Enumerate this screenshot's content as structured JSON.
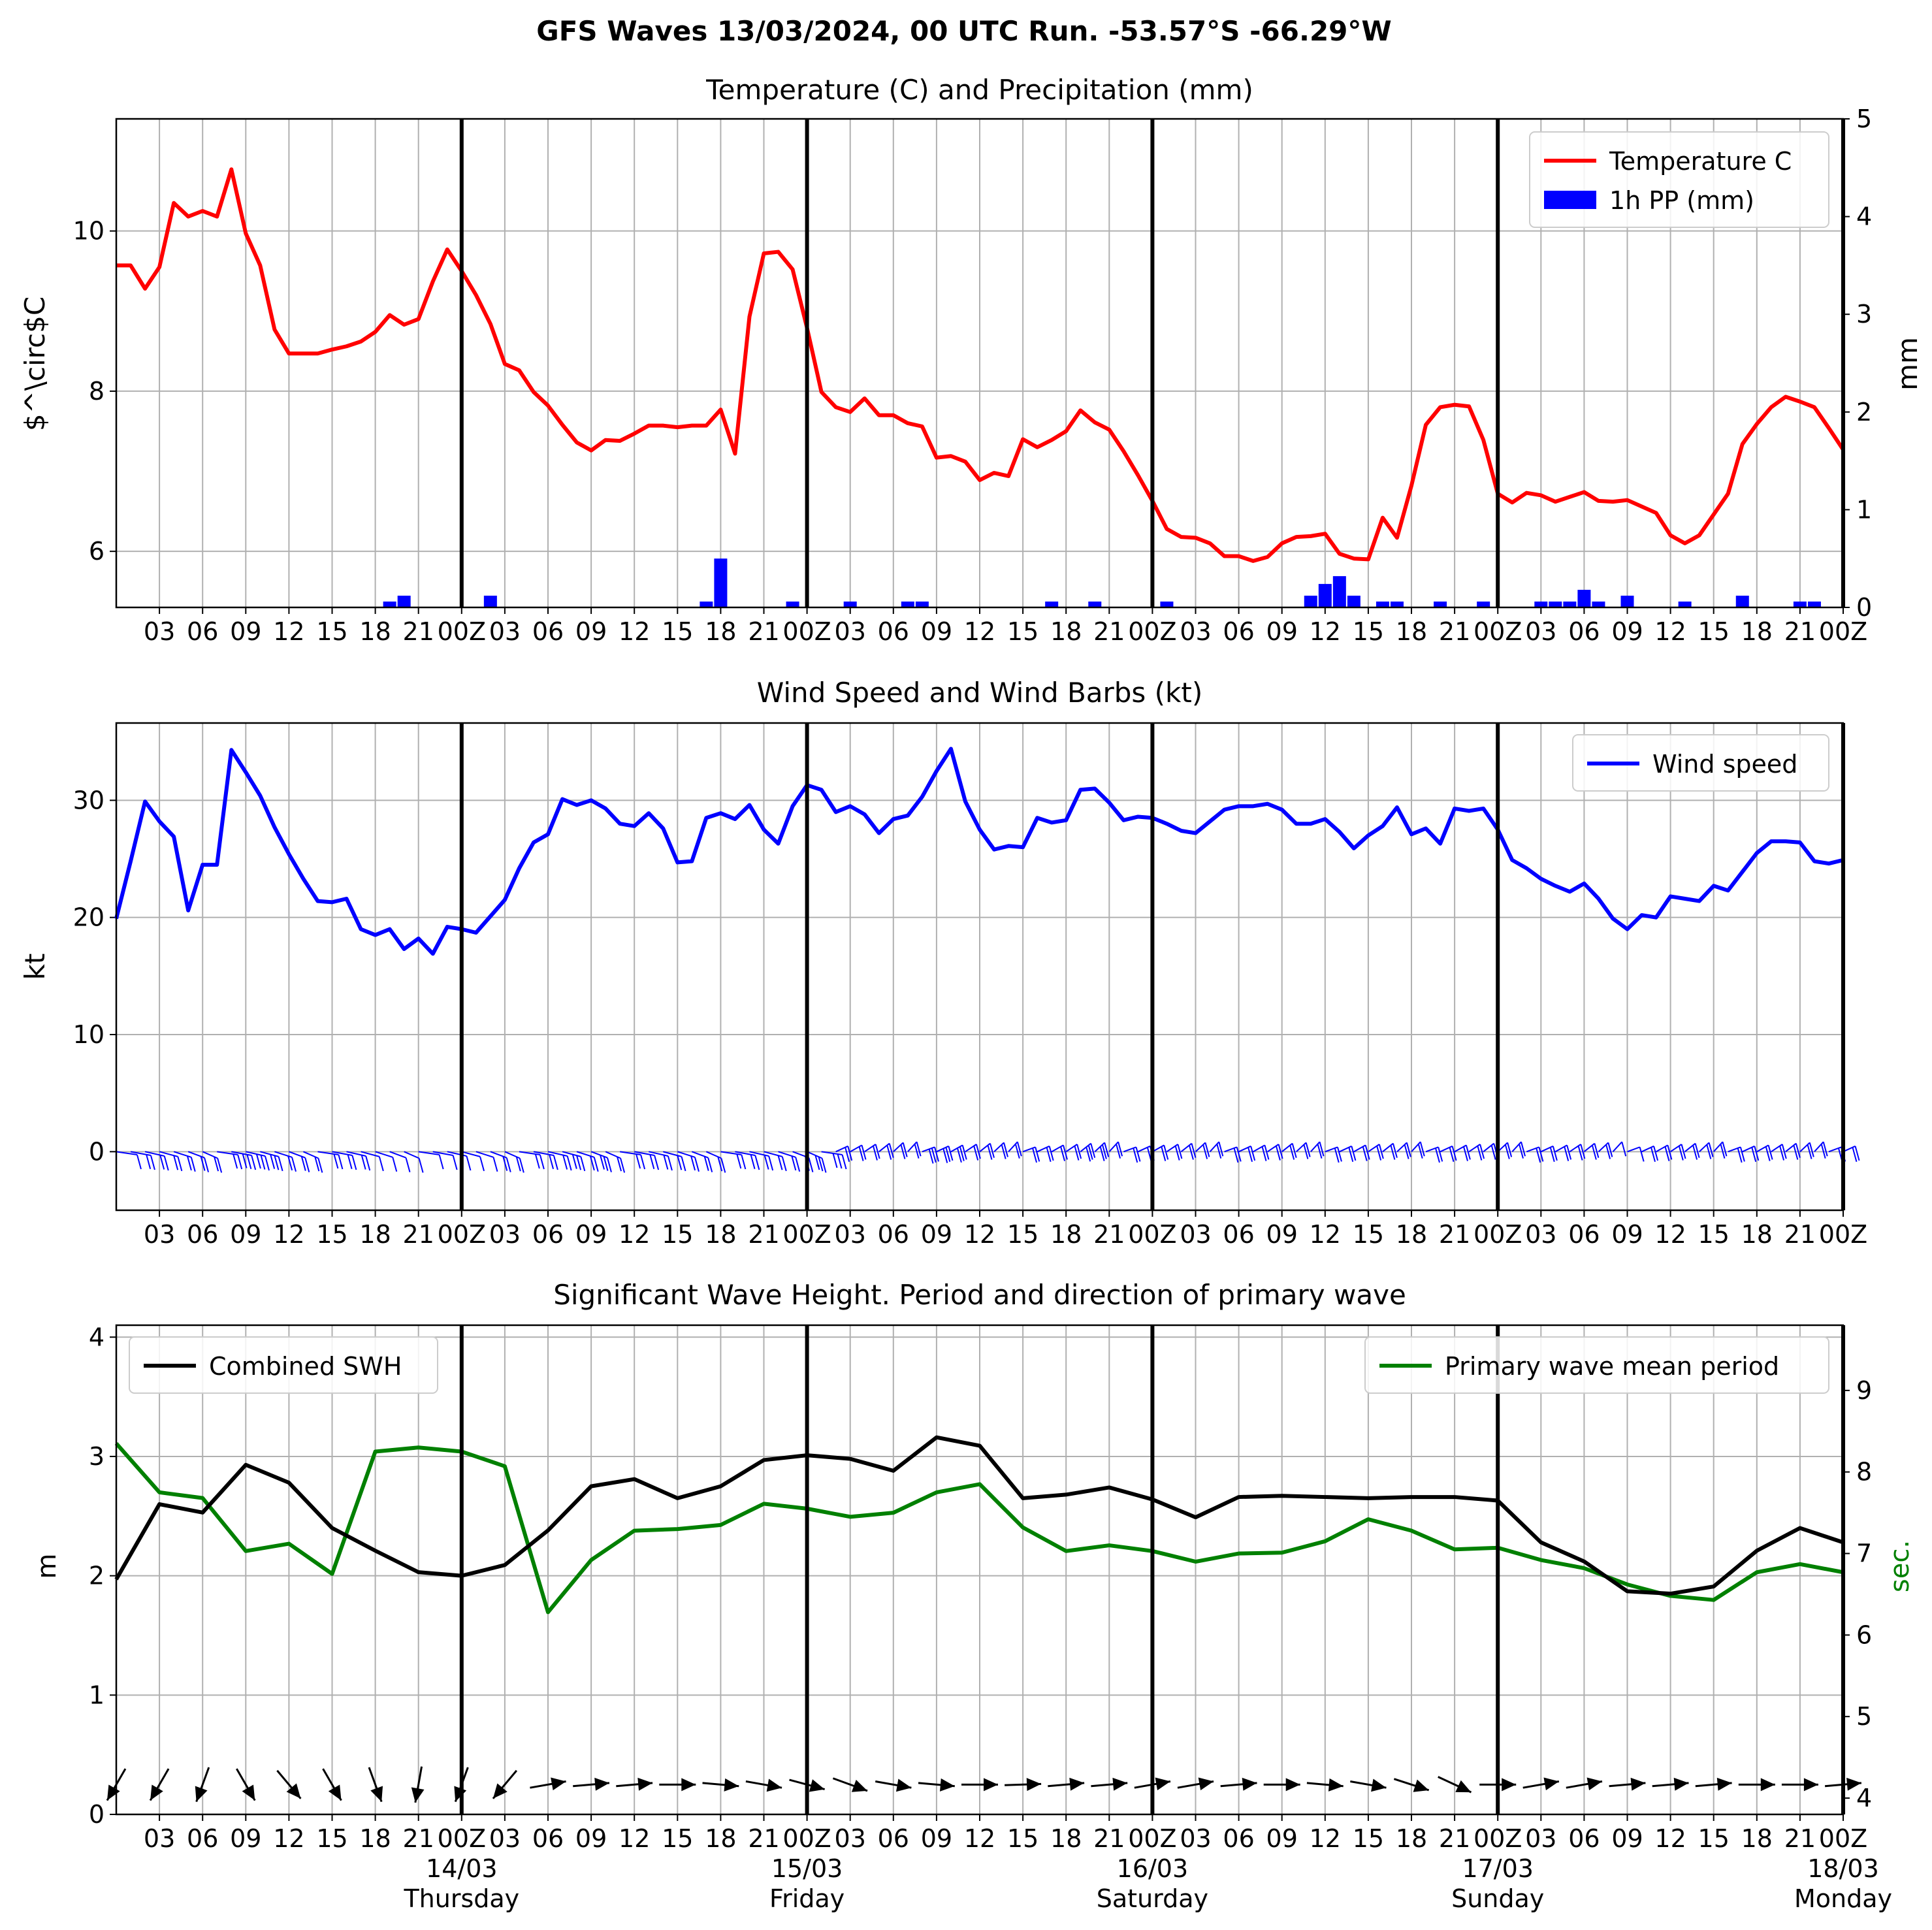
{
  "figure_title": "GFS Waves 13/03/2024, 00 UTC Run. -53.57°S -66.29°W",
  "colors": {
    "temperature": "#ff0000",
    "precip": "#0000ff",
    "wind": "#0000ff",
    "swh": "#000000",
    "period": "#008000",
    "grid": "#b0b0b0",
    "day_line": "#000000"
  },
  "x_tick_labels": [
    "03",
    "06",
    "09",
    "12",
    "15",
    "18",
    "21",
    "00Z",
    "03",
    "06",
    "09",
    "12",
    "15",
    "18",
    "21",
    "00Z",
    "03",
    "06",
    "09",
    "12",
    "15",
    "18",
    "21",
    "00Z",
    "03",
    "06",
    "09",
    "12",
    "15",
    "18",
    "21",
    "00Z",
    "03",
    "06",
    "09",
    "12",
    "15",
    "18",
    "21",
    "00Z"
  ],
  "day_labels": [
    {
      "date": "14/03",
      "weekday": "Thursday"
    },
    {
      "date": "15/03",
      "weekday": "Friday"
    },
    {
      "date": "16/03",
      "weekday": "Saturday"
    },
    {
      "date": "17/03",
      "weekday": "Sunday"
    },
    {
      "date": "18/03",
      "weekday": "Monday"
    }
  ],
  "chart_data": [
    {
      "type": "line",
      "title": "Temperature (C) and Precipitation (mm)",
      "ylabel": "$^\\circ$C",
      "y2label": "mm",
      "x_unit": "hours from 13/03/2024 00 UTC",
      "xlim": [
        0,
        120
      ],
      "ylim": [
        5.3,
        11.4
      ],
      "y2lim": [
        0,
        5
      ],
      "yticks": [
        6,
        8,
        10
      ],
      "y2ticks": [
        0,
        1,
        2,
        3,
        4,
        5
      ],
      "legend_position": "upper-right",
      "grid": true,
      "legend": [
        "Temperature C",
        "1h PP (mm)"
      ],
      "series": [
        {
          "name": "Temperature C",
          "x": [
            0,
            1,
            2,
            3,
            4,
            5,
            6,
            7,
            8,
            9,
            10,
            11,
            12,
            13,
            14,
            15,
            16,
            17,
            18,
            19,
            20,
            21,
            22,
            23,
            24,
            25,
            26,
            27,
            28,
            29,
            30,
            31,
            32,
            33,
            34,
            35,
            36,
            37,
            38,
            39,
            40,
            41,
            42,
            43,
            44,
            45,
            46,
            47,
            48,
            49,
            50,
            51,
            52,
            53,
            54,
            55,
            56,
            57,
            58,
            59,
            60,
            61,
            62,
            63,
            64,
            65,
            66,
            67,
            68,
            69,
            70,
            71,
            72,
            73,
            74,
            75,
            76,
            77,
            78,
            79,
            80,
            81,
            82,
            83,
            84,
            85,
            86,
            87,
            88,
            89,
            90,
            91,
            92,
            93,
            94,
            95,
            96,
            97,
            98,
            99,
            100,
            101,
            102,
            103,
            104,
            105,
            106,
            107,
            108,
            109,
            110,
            111,
            112,
            113,
            114,
            115,
            116,
            117,
            118,
            119,
            120
          ],
          "values": [
            9.57,
            9.57,
            9.28,
            9.55,
            10.35,
            10.18,
            10.25,
            10.18,
            10.77,
            9.97,
            9.57,
            8.77,
            8.47,
            8.47,
            8.47,
            8.52,
            8.56,
            8.62,
            8.74,
            8.95,
            8.83,
            8.9,
            9.37,
            9.77,
            9.5,
            9.2,
            8.84,
            8.34,
            8.26,
            7.99,
            7.82,
            7.58,
            7.36,
            7.26,
            7.39,
            7.38,
            7.47,
            7.57,
            7.57,
            7.55,
            7.57,
            7.57,
            7.77,
            7.22,
            8.93,
            9.72,
            9.74,
            9.52,
            8.79,
            7.99,
            7.8,
            7.74,
            7.91,
            7.7,
            7.7,
            7.6,
            7.56,
            7.17,
            7.19,
            7.12,
            6.89,
            6.98,
            6.94,
            7.4,
            7.3,
            7.39,
            7.5,
            7.76,
            7.61,
            7.52,
            7.25,
            6.95,
            6.63,
            6.28,
            6.18,
            6.17,
            6.1,
            5.94,
            5.94,
            5.88,
            5.93,
            6.1,
            6.18,
            6.19,
            6.22,
            5.97,
            5.91,
            5.9,
            6.42,
            6.17,
            6.82,
            7.58,
            7.8,
            7.83,
            7.81,
            7.39,
            6.72,
            6.61,
            6.73,
            6.7,
            6.62,
            6.68,
            6.74,
            6.63,
            6.62,
            6.64,
            6.56,
            6.48,
            6.2,
            6.1,
            6.2,
            6.46,
            6.72,
            7.34,
            7.59,
            7.8,
            7.93,
            7.87,
            7.8,
            7.54,
            7.27
          ]
        },
        {
          "name": "1h PP (mm)",
          "type": "bar",
          "x": [
            19,
            20,
            26,
            41,
            42,
            47,
            51,
            55,
            56,
            65,
            68,
            73,
            83,
            84,
            85,
            86,
            88,
            89,
            92,
            95,
            99,
            100,
            101,
            102,
            103,
            105,
            109,
            113,
            117,
            118
          ],
          "values": [
            0.06,
            0.12,
            0.12,
            0.06,
            0.5,
            0.06,
            0.06,
            0.06,
            0.06,
            0.06,
            0.06,
            0.06,
            0.12,
            0.24,
            0.32,
            0.12,
            0.06,
            0.06,
            0.06,
            0.06,
            0.06,
            0.06,
            0.06,
            0.18,
            0.06,
            0.12,
            0.06,
            0.12,
            0.06,
            0.06
          ]
        }
      ]
    },
    {
      "type": "line",
      "title": "Wind Speed and Wind Barbs (kt)",
      "ylabel": "kt",
      "x_unit": "hours from 13/03/2024 00 UTC",
      "xlim": [
        0,
        120
      ],
      "ylim": [
        -5,
        36.6
      ],
      "yticks": [
        0,
        10,
        20,
        30
      ],
      "legend_position": "upper-right",
      "grid": true,
      "legend": [
        "Wind speed"
      ],
      "series": [
        {
          "name": "Wind speed",
          "x": [
            0,
            1,
            2,
            3,
            4,
            5,
            6,
            7,
            8,
            9,
            10,
            11,
            12,
            13,
            14,
            15,
            16,
            17,
            18,
            19,
            20,
            21,
            22,
            23,
            24,
            25,
            26,
            27,
            28,
            29,
            30,
            31,
            32,
            33,
            34,
            35,
            36,
            37,
            38,
            39,
            40,
            41,
            42,
            43,
            44,
            45,
            46,
            47,
            48,
            49,
            50,
            51,
            52,
            53,
            54,
            55,
            56,
            57,
            58,
            59,
            60,
            61,
            62,
            63,
            64,
            65,
            66,
            67,
            68,
            69,
            70,
            71,
            72,
            73,
            74,
            75,
            76,
            77,
            78,
            79,
            80,
            81,
            82,
            83,
            84,
            85,
            86,
            87,
            88,
            89,
            90,
            91,
            92,
            93,
            94,
            95,
            96,
            97,
            98,
            99,
            100,
            101,
            102,
            103,
            104,
            105,
            106,
            107,
            108,
            109,
            110,
            111,
            112,
            113,
            114,
            115,
            116,
            117,
            118,
            119,
            120
          ],
          "values": [
            19.9,
            24.8,
            29.9,
            28.2,
            26.9,
            20.6,
            24.5,
            24.5,
            34.3,
            32.4,
            30.4,
            27.7,
            25.4,
            23.3,
            21.4,
            21.3,
            21.6,
            19.0,
            18.5,
            19.0,
            17.3,
            18.2,
            16.9,
            19.2,
            19.0,
            18.7,
            20.1,
            21.5,
            24.2,
            26.4,
            27.1,
            30.1,
            29.6,
            30.0,
            29.3,
            28.0,
            27.8,
            28.9,
            27.6,
            24.7,
            24.8,
            28.5,
            28.9,
            28.4,
            29.6,
            27.5,
            26.3,
            29.5,
            31.3,
            30.9,
            29.0,
            29.5,
            28.8,
            27.2,
            28.4,
            28.7,
            30.3,
            32.5,
            34.4,
            29.9,
            27.5,
            25.8,
            26.1,
            26.0,
            28.5,
            28.1,
            28.3,
            30.9,
            31.0,
            29.8,
            28.3,
            28.6,
            28.5,
            28.0,
            27.4,
            27.2,
            28.2,
            29.2,
            29.5,
            29.5,
            29.7,
            29.2,
            28.0,
            28.0,
            28.4,
            27.3,
            25.9,
            27.0,
            27.8,
            29.4,
            27.1,
            27.6,
            26.3,
            29.3,
            29.1,
            29.3,
            27.5,
            24.9,
            24.2,
            23.3,
            22.7,
            22.2,
            22.9,
            21.6,
            19.9,
            19.0,
            20.2,
            20.0,
            21.8,
            21.6,
            21.4,
            22.7,
            22.3,
            23.9,
            25.5,
            26.5,
            26.5,
            26.4,
            24.8,
            24.6,
            24.9
          ]
        }
      ]
    },
    {
      "type": "line",
      "title": "Significant Wave Height. Period and direction of primary wave",
      "ylabel": "m",
      "y2label": "sec.",
      "x_unit": "hours from 13/03/2024 00 UTC",
      "xlim": [
        0,
        120
      ],
      "ylim": [
        0,
        4.1
      ],
      "y2lim": [
        3.8,
        9.8
      ],
      "yticks": [
        0,
        1,
        2,
        3,
        4
      ],
      "y2ticks": [
        4,
        5,
        6,
        7,
        8,
        9
      ],
      "grid": true,
      "legend": [
        "Combined SWH",
        "Primary wave mean period"
      ],
      "legend_positions": [
        "upper-left",
        "upper-right"
      ],
      "series": [
        {
          "name": "Combined SWH",
          "axis": "left",
          "x": [
            0,
            3,
            6,
            9,
            12,
            15,
            18,
            21,
            24,
            27,
            30,
            33,
            36,
            39,
            42,
            45,
            48,
            51,
            54,
            57,
            60,
            63,
            66,
            69,
            72,
            75,
            78,
            81,
            84,
            87,
            90,
            93,
            96,
            99,
            102,
            105,
            108,
            111,
            114,
            117,
            120
          ],
          "values": [
            1.97,
            2.6,
            2.53,
            2.93,
            2.78,
            2.4,
            2.21,
            2.03,
            2.0,
            2.09,
            2.38,
            2.75,
            2.81,
            2.65,
            2.75,
            2.97,
            3.01,
            2.98,
            2.88,
            3.16,
            3.09,
            2.65,
            2.68,
            2.74,
            2.64,
            2.49,
            2.66,
            2.67,
            2.66,
            2.65,
            2.66,
            2.66,
            2.63,
            2.28,
            2.12,
            1.87,
            1.85,
            1.91,
            2.21,
            2.4,
            2.28
          ]
        },
        {
          "name": "Primary wave mean period",
          "axis": "right",
          "x": [
            0,
            3,
            6,
            9,
            12,
            15,
            18,
            21,
            24,
            27,
            30,
            33,
            36,
            39,
            42,
            45,
            48,
            51,
            54,
            57,
            60,
            63,
            66,
            69,
            72,
            75,
            78,
            81,
            84,
            87,
            90,
            93,
            96,
            99,
            102,
            105,
            108,
            111,
            114,
            117,
            120
          ],
          "values": [
            8.35,
            7.75,
            7.68,
            7.03,
            7.12,
            6.75,
            8.25,
            8.3,
            8.25,
            8.07,
            6.28,
            6.92,
            7.28,
            7.3,
            7.35,
            7.61,
            7.55,
            7.45,
            7.5,
            7.75,
            7.85,
            7.32,
            7.03,
            7.1,
            7.03,
            6.9,
            7.0,
            7.01,
            7.15,
            7.42,
            7.28,
            7.05,
            7.07,
            6.92,
            6.82,
            6.62,
            6.48,
            6.43,
            6.77,
            6.87,
            6.77
          ]
        }
      ],
      "wave_direction_arrows": {
        "x": [
          0,
          3,
          6,
          9,
          12,
          15,
          18,
          21,
          24,
          27,
          30,
          33,
          36,
          39,
          42,
          45,
          48,
          51,
          54,
          57,
          60,
          63,
          66,
          69,
          72,
          75,
          78,
          81,
          84,
          87,
          90,
          93,
          96,
          99,
          102,
          105,
          108,
          111,
          114,
          117,
          120
        ],
        "direction_deg_toward": [
          210,
          210,
          200,
          150,
          140,
          150,
          160,
          190,
          200,
          220,
          80,
          85,
          85,
          90,
          95,
          100,
          105,
          110,
          100,
          95,
          90,
          88,
          85,
          85,
          80,
          80,
          85,
          90,
          95,
          100,
          108,
          115,
          90,
          80,
          80,
          85,
          85,
          85,
          90,
          90,
          85
        ]
      }
    }
  ]
}
